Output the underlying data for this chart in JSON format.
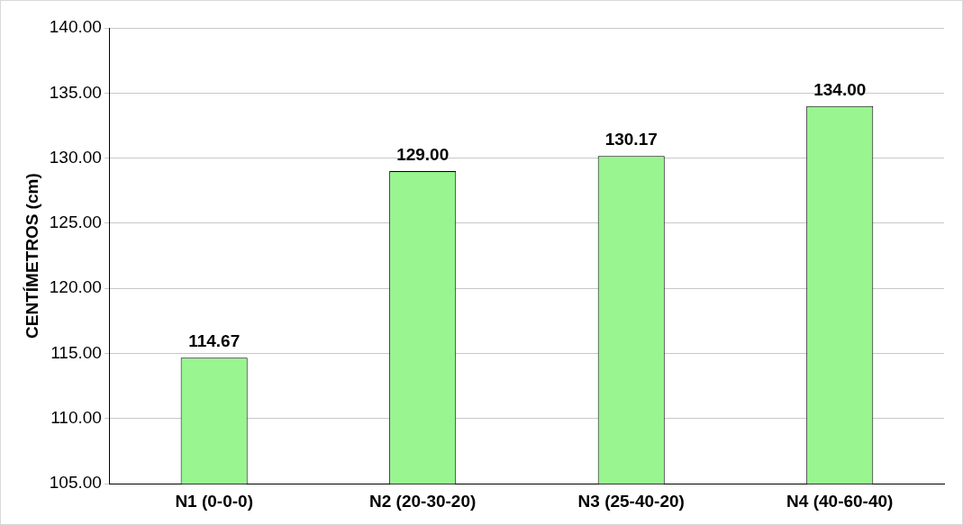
{
  "chart_data": {
    "type": "bar",
    "ylabel": "CENTÍMETROS (cm)",
    "categories": [
      "N1 (0-0-0)",
      "N2 (20-30-20)",
      "N3 (25-40-20)",
      "N4 (40-60-40)"
    ],
    "values": [
      114.67,
      129.0,
      130.17,
      134.0
    ],
    "value_labels": [
      "114.67",
      "129.00",
      "130.17",
      "134.00"
    ],
    "color": "#98f590",
    "ylim": [
      105,
      140
    ],
    "yticks": [
      {
        "value": 105,
        "label": "105.00"
      },
      {
        "value": 110,
        "label": "110.00"
      },
      {
        "value": 115,
        "label": "115.00"
      },
      {
        "value": 120,
        "label": "120.00"
      },
      {
        "value": 125,
        "label": "125.00"
      },
      {
        "value": 130,
        "label": "130.00"
      },
      {
        "value": 135,
        "label": "135.00"
      },
      {
        "value": 140,
        "label": "140.00"
      }
    ],
    "grid": "y",
    "legend": false
  }
}
